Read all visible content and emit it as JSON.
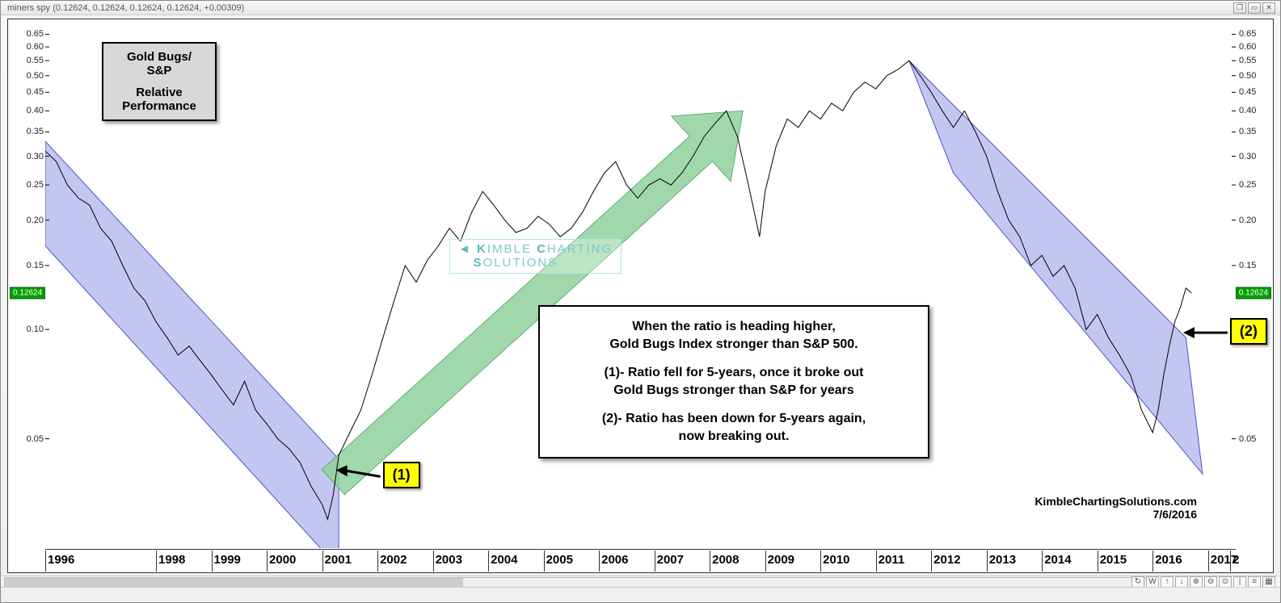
{
  "window": {
    "title": "miners spy (0.12624, 0.12624, 0.12624, 0.12624, +0.00309)"
  },
  "chart": {
    "type": "line",
    "yscale": "log",
    "current_value_label": "0.12624",
    "current_value": 0.12624,
    "background_color": "#ffffff",
    "line_color": "#000000",
    "line_width": 1,
    "yaxis": {
      "ticks": [
        0.65,
        0.6,
        0.55,
        0.5,
        0.45,
        0.4,
        0.35,
        0.3,
        0.25,
        0.2,
        0.15,
        0.1,
        0.05
      ],
      "min": 0.025,
      "max": 0.7,
      "label_fontsize": 11
    },
    "xaxis": {
      "labels": [
        "1996",
        "1998",
        "1999",
        "2000",
        "2001",
        "2002",
        "2003",
        "2004",
        "2005",
        "2006",
        "2007",
        "2008",
        "2009",
        "2010",
        "2011",
        "2012",
        "2013",
        "2014",
        "2015",
        "2016",
        "2017",
        "2"
      ],
      "min_year": 1996,
      "max_year": 2017.5,
      "label_fontsize": 15
    },
    "channels": [
      {
        "name": "channel-1",
        "fill": "#8f97e6",
        "opacity": 0.55,
        "points_top": [
          [
            1996.0,
            0.33
          ],
          [
            2001.3,
            0.044
          ]
        ],
        "points_bottom": [
          [
            1996.0,
            0.17
          ],
          [
            2001.3,
            0.022
          ]
        ]
      },
      {
        "name": "channel-2",
        "fill": "#8f97e6",
        "opacity": 0.55,
        "points_top": [
          [
            2011.6,
            0.55
          ],
          [
            2016.6,
            0.095
          ]
        ],
        "points_bottom": [
          [
            2012.4,
            0.27
          ],
          [
            2016.9,
            0.04
          ]
        ]
      }
    ],
    "arrow": {
      "color": "#8fd19e",
      "opacity": 0.85,
      "start": [
        2001.2,
        0.038
      ],
      "end": [
        2008.6,
        0.4
      ],
      "width": 42
    },
    "series": [
      [
        1996.0,
        0.31
      ],
      [
        1996.2,
        0.29
      ],
      [
        1996.4,
        0.25
      ],
      [
        1996.6,
        0.23
      ],
      [
        1996.8,
        0.22
      ],
      [
        1997.0,
        0.19
      ],
      [
        1997.2,
        0.175
      ],
      [
        1997.4,
        0.15
      ],
      [
        1997.6,
        0.13
      ],
      [
        1997.8,
        0.12
      ],
      [
        1998.0,
        0.105
      ],
      [
        1998.2,
        0.095
      ],
      [
        1998.4,
        0.085
      ],
      [
        1998.6,
        0.09
      ],
      [
        1998.8,
        0.082
      ],
      [
        1999.0,
        0.075
      ],
      [
        1999.2,
        0.068
      ],
      [
        1999.4,
        0.062
      ],
      [
        1999.6,
        0.072
      ],
      [
        1999.8,
        0.06
      ],
      [
        2000.0,
        0.055
      ],
      [
        2000.2,
        0.05
      ],
      [
        2000.4,
        0.047
      ],
      [
        2000.6,
        0.043
      ],
      [
        2000.8,
        0.037
      ],
      [
        2001.0,
        0.033
      ],
      [
        2001.1,
        0.03
      ],
      [
        2001.2,
        0.035
      ],
      [
        2001.3,
        0.045
      ],
      [
        2001.5,
        0.052
      ],
      [
        2001.7,
        0.06
      ],
      [
        2001.9,
        0.075
      ],
      [
        2002.1,
        0.095
      ],
      [
        2002.3,
        0.12
      ],
      [
        2002.5,
        0.15
      ],
      [
        2002.7,
        0.135
      ],
      [
        2002.9,
        0.155
      ],
      [
        2003.1,
        0.17
      ],
      [
        2003.3,
        0.19
      ],
      [
        2003.5,
        0.175
      ],
      [
        2003.7,
        0.21
      ],
      [
        2003.9,
        0.24
      ],
      [
        2004.1,
        0.22
      ],
      [
        2004.3,
        0.2
      ],
      [
        2004.5,
        0.185
      ],
      [
        2004.7,
        0.19
      ],
      [
        2004.9,
        0.205
      ],
      [
        2005.1,
        0.195
      ],
      [
        2005.3,
        0.18
      ],
      [
        2005.5,
        0.19
      ],
      [
        2005.7,
        0.21
      ],
      [
        2005.9,
        0.24
      ],
      [
        2006.1,
        0.27
      ],
      [
        2006.3,
        0.29
      ],
      [
        2006.5,
        0.25
      ],
      [
        2006.7,
        0.23
      ],
      [
        2006.9,
        0.25
      ],
      [
        2007.1,
        0.26
      ],
      [
        2007.3,
        0.25
      ],
      [
        2007.5,
        0.27
      ],
      [
        2007.7,
        0.3
      ],
      [
        2007.9,
        0.34
      ],
      [
        2008.1,
        0.37
      ],
      [
        2008.3,
        0.4
      ],
      [
        2008.5,
        0.34
      ],
      [
        2008.7,
        0.25
      ],
      [
        2008.9,
        0.18
      ],
      [
        2009.0,
        0.24
      ],
      [
        2009.2,
        0.32
      ],
      [
        2009.4,
        0.38
      ],
      [
        2009.6,
        0.36
      ],
      [
        2009.8,
        0.4
      ],
      [
        2010.0,
        0.38
      ],
      [
        2010.2,
        0.42
      ],
      [
        2010.4,
        0.4
      ],
      [
        2010.6,
        0.45
      ],
      [
        2010.8,
        0.48
      ],
      [
        2011.0,
        0.46
      ],
      [
        2011.2,
        0.5
      ],
      [
        2011.4,
        0.52
      ],
      [
        2011.6,
        0.55
      ],
      [
        2011.8,
        0.5
      ],
      [
        2012.0,
        0.45
      ],
      [
        2012.2,
        0.4
      ],
      [
        2012.4,
        0.36
      ],
      [
        2012.6,
        0.4
      ],
      [
        2012.8,
        0.35
      ],
      [
        2013.0,
        0.3
      ],
      [
        2013.2,
        0.24
      ],
      [
        2013.4,
        0.2
      ],
      [
        2013.6,
        0.18
      ],
      [
        2013.8,
        0.15
      ],
      [
        2014.0,
        0.16
      ],
      [
        2014.2,
        0.14
      ],
      [
        2014.4,
        0.15
      ],
      [
        2014.6,
        0.13
      ],
      [
        2014.8,
        0.1
      ],
      [
        2015.0,
        0.11
      ],
      [
        2015.2,
        0.095
      ],
      [
        2015.4,
        0.085
      ],
      [
        2015.6,
        0.075
      ],
      [
        2015.8,
        0.06
      ],
      [
        2016.0,
        0.052
      ],
      [
        2016.1,
        0.06
      ],
      [
        2016.2,
        0.075
      ],
      [
        2016.3,
        0.09
      ],
      [
        2016.4,
        0.105
      ],
      [
        2016.5,
        0.115
      ],
      [
        2016.6,
        0.13
      ],
      [
        2016.7,
        0.126
      ]
    ]
  },
  "annotations": {
    "title_box": {
      "line1": "Gold Bugs/",
      "line2": "S&P",
      "line3": "Relative",
      "line4": "Performance"
    },
    "explain_box": {
      "l1": "When the ratio is heading higher,",
      "l2": "Gold Bugs Index stronger than S&P 500.",
      "l3": "(1)- Ratio fell for 5-years, once it broke out",
      "l4": "Gold Bugs stronger than S&P for years",
      "l5": "(2)- Ratio has been down for 5-years again,",
      "l6": "now breaking out."
    },
    "badge1": "(1)",
    "badge2": "(2)",
    "watermark_top": "KIMBLE CHARTING",
    "watermark_bottom": "SOLUTIONS",
    "credit_line1": "KimbleChartingSolutions.com",
    "credit_line2": "7/6/2016"
  },
  "toolbar": {
    "icons": [
      "↻",
      "W",
      "↑",
      "↓",
      "⊕",
      "⊖",
      "⊙",
      "|",
      "≡",
      "▦"
    ]
  }
}
